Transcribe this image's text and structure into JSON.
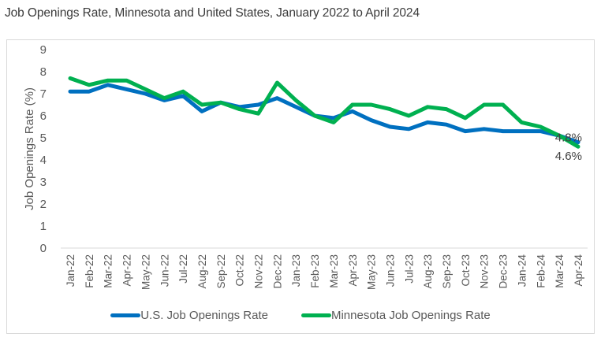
{
  "chart_data": {
    "type": "line",
    "title": "Job Openings Rate, Minnesota and United States, January 2022 to April 2024",
    "xlabel": "",
    "ylabel": "Job Openings Rate (%)",
    "ylim": [
      0,
      9
    ],
    "yticks": [
      "0",
      "1",
      "2",
      "3",
      "4",
      "5",
      "6",
      "7",
      "8",
      "9"
    ],
    "grid": false,
    "legend_position": "bottom",
    "categories": [
      "Jan-22",
      "Feb-22",
      "Mar-22",
      "Apr-22",
      "May-22",
      "Jun-22",
      "Jul-22",
      "Aug-22",
      "Sep-22",
      "Oct-22",
      "Nov-22",
      "Dec-22",
      "Jan-23",
      "Feb-23",
      "Mar-23",
      "Apr-23",
      "May-23",
      "Jun-23",
      "Jul-23",
      "Aug-23",
      "Sep-23",
      "Oct-23",
      "Nov-23",
      "Dec-23",
      "Jan-24",
      "Feb-24",
      "Mar-24",
      "Apr-24"
    ],
    "series": [
      {
        "name": "U.S. Job Openings Rate",
        "color": "#0070c0",
        "values": [
          7.1,
          7.1,
          7.4,
          7.2,
          7.0,
          6.7,
          6.9,
          6.2,
          6.6,
          6.4,
          6.5,
          6.8,
          6.4,
          6.0,
          5.9,
          6.2,
          5.8,
          5.5,
          5.4,
          5.7,
          5.6,
          5.3,
          5.4,
          5.3,
          5.3,
          5.3,
          5.1,
          4.8
        ],
        "end_label": "4.8%"
      },
      {
        "name": "Minnesota Job Openings Rate",
        "color": "#00b050",
        "values": [
          7.7,
          7.4,
          7.6,
          7.6,
          7.2,
          6.8,
          7.1,
          6.5,
          6.6,
          6.3,
          6.1,
          7.5,
          6.7,
          6.0,
          5.7,
          6.5,
          6.5,
          6.3,
          6.0,
          6.4,
          6.3,
          5.9,
          6.5,
          6.5,
          5.7,
          5.5,
          5.1,
          4.6
        ],
        "end_label": "4.6%"
      }
    ]
  }
}
